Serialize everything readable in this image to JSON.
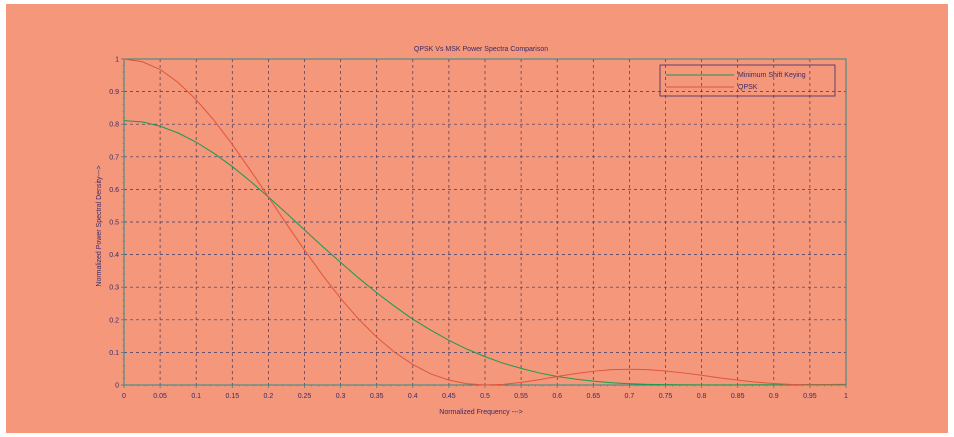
{
  "chart_data": {
    "type": "line",
    "title": "QPSK Vs MSK Power Spectra Comparison",
    "xlabel": "Normalized Frequency --->",
    "ylabel": "Normalized Power Spectral Density--->",
    "xlim": [
      0,
      1
    ],
    "ylim": [
      0,
      1
    ],
    "x_ticks": [
      "0",
      "0.05",
      "0.1",
      "0.15",
      "0.2",
      "0.25",
      "0.3",
      "0.35",
      "0.4",
      "0.45",
      "0.5",
      "0.55",
      "0.6",
      "0.65",
      "0.7",
      "0.75",
      "0.8",
      "0.85",
      "0.9",
      "0.95",
      "1"
    ],
    "y_ticks": [
      "0",
      "0.1",
      "0.2",
      "0.3",
      "0.4",
      "0.5",
      "0.6",
      "0.7",
      "0.8",
      "0.9",
      "1"
    ],
    "grid": true,
    "legend_position": "top-right",
    "x": [
      0,
      0.025,
      0.05,
      0.075,
      0.1,
      0.125,
      0.15,
      0.175,
      0.2,
      0.225,
      0.25,
      0.275,
      0.3,
      0.325,
      0.35,
      0.375,
      0.4,
      0.425,
      0.45,
      0.475,
      0.5,
      0.525,
      0.55,
      0.575,
      0.6,
      0.625,
      0.65,
      0.675,
      0.7,
      0.725,
      0.75,
      0.775,
      0.8,
      0.825,
      0.85,
      0.875,
      0.9,
      0.925,
      0.95,
      0.975,
      1
    ],
    "series": [
      {
        "name": "Minimum Shift Keying",
        "color": "#1a9a50",
        "values": [
          0.811,
          0.807,
          0.794,
          0.773,
          0.745,
          0.71,
          0.67,
          0.625,
          0.577,
          0.527,
          0.476,
          0.425,
          0.376,
          0.328,
          0.283,
          0.241,
          0.202,
          0.168,
          0.137,
          0.11,
          0.087,
          0.067,
          0.051,
          0.037,
          0.026,
          0.018,
          0.012,
          0.007,
          0.004,
          0.002,
          0.001,
          0.0007,
          0.0004,
          0.0003,
          0.0004,
          0.0006,
          0.0008,
          0.0011,
          0.0014,
          0.0017,
          0.0019
        ]
      },
      {
        "name": "QPSK",
        "color": "#e0563c",
        "values": [
          1.0,
          0.992,
          0.968,
          0.928,
          0.875,
          0.811,
          0.738,
          0.659,
          0.577,
          0.494,
          0.414,
          0.337,
          0.266,
          0.202,
          0.147,
          0.1,
          0.063,
          0.034,
          0.015,
          0.004,
          0.0,
          0.0018,
          0.008,
          0.016,
          0.026,
          0.035,
          0.042,
          0.047,
          0.0485,
          0.047,
          0.043,
          0.037,
          0.03,
          0.022,
          0.015,
          0.009,
          0.0045,
          0.0015,
          0.0002,
          0.0002,
          0.0
        ]
      }
    ]
  }
}
